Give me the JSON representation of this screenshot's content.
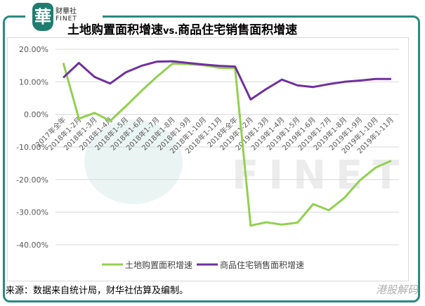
{
  "header": {
    "brand_cn": "财華社",
    "brand_en": "FINET",
    "logo_glyph": "華",
    "title_part1": "土地购置面积增速",
    "title_vs": "vs.",
    "title_part2": "商品住宅销售面积增速"
  },
  "footer": {
    "source": "来源：数据来自统计局，财华社估算及编制。",
    "watermark": "港股解码"
  },
  "colors": {
    "land": "#92d050",
    "sales": "#7030a0",
    "frame": "#2a8a80"
  },
  "chart_data": {
    "type": "line",
    "title": "土地购置面积增速 vs.商品住宅销售面积增速",
    "xlabel": "",
    "ylabel": "",
    "ylim": [
      -40,
      20
    ],
    "yticks": [
      "20.00%",
      "10.00%",
      "0.00%",
      "-10.00%",
      "-20.00%",
      "-30.00%",
      "-40.00%"
    ],
    "grid": true,
    "legend_position": "bottom",
    "categories": [
      "2017年全年",
      "2018年1-2月",
      "2018年1-3月",
      "2018年1-4月",
      "2018年1-5月",
      "2018年1-6月",
      "2018年1-7月",
      "2018年1-8月",
      "2018年1-9月",
      "2018年1-10月",
      "2018年1-11月",
      "2018年全年",
      "2019年1-2月",
      "2019年1-3月",
      "2019年1-4月",
      "2019年1-5月",
      "2019年1-6月",
      "2019年1-7月",
      "2019年1-8月",
      "2019年1-9月",
      "2019年1-10月",
      "2019年1-11月"
    ],
    "series": [
      {
        "name": "土地购置面积增速",
        "color": "#92d050",
        "values": [
          15.8,
          -1.3,
          0.5,
          -2.0,
          2.5,
          7.2,
          11.6,
          15.6,
          15.4,
          15.1,
          14.3,
          14.2,
          -34.1,
          -33.1,
          -33.8,
          -33.2,
          -27.5,
          -29.4,
          -25.6,
          -20.2,
          -16.3,
          -14.2
        ]
      },
      {
        "name": "商品住宅销售面积增速",
        "color": "#7030a0",
        "values": [
          11.3,
          15.8,
          11.5,
          9.5,
          12.9,
          14.9,
          16.2,
          16.3,
          15.8,
          15.3,
          14.9,
          14.7,
          4.6,
          7.8,
          10.7,
          8.9,
          8.4,
          9.3,
          10.0,
          10.4,
          10.9,
          10.9
        ]
      }
    ]
  }
}
